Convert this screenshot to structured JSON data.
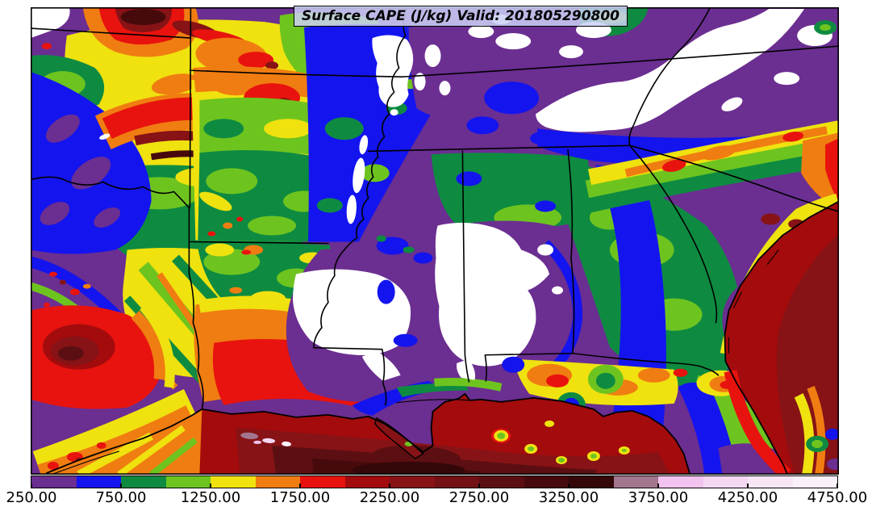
{
  "figure": {
    "title": "Surface CAPE (J/kg) Valid: 201805290800"
  },
  "chart_data": {
    "type": "heatmap",
    "subtype": "filled-contour-weather-map",
    "title": "Surface CAPE (J/kg) Valid: 201805290800",
    "variable": "Surface CAPE",
    "units": "J/kg",
    "valid_time": "201805290800",
    "map_content": "Filled CAPE contours over the south-central/southeastern United States and Gulf of Mexico with black state borders and coastline; white areas below 250 J/kg over Missouri bootheel, Mississippi/Alabama and the Appalachians; highest values (dark red, 2000-3500+) over the Gulf of Mexico, coastal Texas/Louisiana and offshore Atlantic; mauve/pink extreme bins appear as small Gulf specks",
    "grid": false,
    "legend_position": "bottom",
    "colorbar": {
      "orientation": "horizontal",
      "min": 250,
      "max": 4750,
      "step": 250,
      "tick_values": [
        250,
        750,
        1250,
        1750,
        2250,
        2750,
        3250,
        3750,
        4250,
        4750
      ],
      "tick_labels": [
        "250.00",
        "750.00",
        "1250.00",
        "1750.00",
        "2250.00",
        "2750.00",
        "3250.00",
        "3750.00",
        "4250.00",
        "4750.00"
      ],
      "colors": [
        "#6B2E91",
        "#1414EF",
        "#0E8B41",
        "#6EC41F",
        "#EFE20F",
        "#F07D11",
        "#E8130E",
        "#A30B0D",
        "#871316",
        "#721014",
        "#5C0F12",
        "#470A0C",
        "#340708",
        "#A3768F",
        "#F2C3EE",
        "#F3D7F3",
        "#F8E6F6",
        "#FAF0F9"
      ],
      "bin_edges": [
        250,
        500,
        750,
        1000,
        1250,
        1500,
        1750,
        2000,
        2250,
        2500,
        2750,
        3000,
        3250,
        3500,
        3750,
        4000,
        4250,
        4500,
        4750
      ]
    },
    "accent_colors": {
      "border_lines": "#000000",
      "title_box_background": "#CBD1F6",
      "low_value_fill": "#FFFFFF"
    }
  }
}
